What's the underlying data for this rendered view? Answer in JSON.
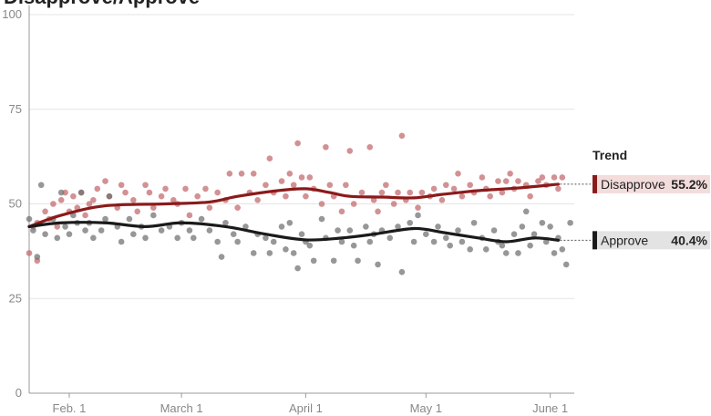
{
  "header": {
    "title_partial": "Disapprove/Approve"
  },
  "chart_data": {
    "type": "scatter",
    "x_type": "date",
    "xlim": [
      "2017-01-22",
      "2017-06-07"
    ],
    "ylim": [
      0,
      100
    ],
    "y_ticks": [
      0,
      25,
      50,
      75,
      100
    ],
    "x_ticks": [
      {
        "date": "2017-02-01",
        "label": "Feb. 1"
      },
      {
        "date": "2017-03-01",
        "label": "March 1"
      },
      {
        "date": "2017-04-01",
        "label": "April 1"
      },
      {
        "date": "2017-05-01",
        "label": "May 1"
      },
      {
        "date": "2017-06-01",
        "label": "June 1"
      }
    ],
    "grid": "horizontal",
    "legend_title": "Trend",
    "legend_position": "right",
    "series": [
      {
        "name": "Disapprove",
        "color": "#8b1a1a",
        "point_color": "#c0676b",
        "value_label": "55.2%",
        "trend": [
          {
            "x": "2017-01-22",
            "y": 44
          },
          {
            "x": "2017-01-30",
            "y": 47
          },
          {
            "x": "2017-02-10",
            "y": 49.5
          },
          {
            "x": "2017-02-25",
            "y": 50
          },
          {
            "x": "2017-03-08",
            "y": 50.5
          },
          {
            "x": "2017-03-15",
            "y": 52
          },
          {
            "x": "2017-03-25",
            "y": 53.5
          },
          {
            "x": "2017-04-01",
            "y": 54
          },
          {
            "x": "2017-04-07",
            "y": 53
          },
          {
            "x": "2017-04-12",
            "y": 52
          },
          {
            "x": "2017-04-20",
            "y": 51.8
          },
          {
            "x": "2017-04-28",
            "y": 51.6
          },
          {
            "x": "2017-05-05",
            "y": 52.5
          },
          {
            "x": "2017-05-14",
            "y": 53.5
          },
          {
            "x": "2017-05-24",
            "y": 54.2
          },
          {
            "x": "2017-06-03",
            "y": 55.2
          }
        ],
        "points": [
          {
            "x": "2017-01-22",
            "y": 37
          },
          {
            "x": "2017-01-23",
            "y": 44
          },
          {
            "x": "2017-01-24",
            "y": 35
          },
          {
            "x": "2017-01-24",
            "y": 45
          },
          {
            "x": "2017-01-26",
            "y": 48
          },
          {
            "x": "2017-01-27",
            "y": 46
          },
          {
            "x": "2017-01-28",
            "y": 50
          },
          {
            "x": "2017-01-29",
            "y": 44
          },
          {
            "x": "2017-01-30",
            "y": 51
          },
          {
            "x": "2017-01-31",
            "y": 53
          },
          {
            "x": "2017-02-01",
            "y": 48
          },
          {
            "x": "2017-02-02",
            "y": 52
          },
          {
            "x": "2017-02-03",
            "y": 49
          },
          {
            "x": "2017-02-04",
            "y": 53
          },
          {
            "x": "2017-02-05",
            "y": 47
          },
          {
            "x": "2017-02-06",
            "y": 50
          },
          {
            "x": "2017-02-07",
            "y": 51
          },
          {
            "x": "2017-02-08",
            "y": 54
          },
          {
            "x": "2017-02-10",
            "y": 56
          },
          {
            "x": "2017-02-11",
            "y": 52
          },
          {
            "x": "2017-02-13",
            "y": 49
          },
          {
            "x": "2017-02-14",
            "y": 55
          },
          {
            "x": "2017-02-15",
            "y": 53
          },
          {
            "x": "2017-02-17",
            "y": 51
          },
          {
            "x": "2017-02-18",
            "y": 48
          },
          {
            "x": "2017-02-20",
            "y": 55
          },
          {
            "x": "2017-02-21",
            "y": 53
          },
          {
            "x": "2017-02-22",
            "y": 49
          },
          {
            "x": "2017-02-24",
            "y": 52
          },
          {
            "x": "2017-02-25",
            "y": 54
          },
          {
            "x": "2017-02-27",
            "y": 51
          },
          {
            "x": "2017-02-28",
            "y": 50
          },
          {
            "x": "2017-03-02",
            "y": 54
          },
          {
            "x": "2017-03-03",
            "y": 47
          },
          {
            "x": "2017-03-05",
            "y": 52
          },
          {
            "x": "2017-03-07",
            "y": 54
          },
          {
            "x": "2017-03-08",
            "y": 49
          },
          {
            "x": "2017-03-10",
            "y": 53
          },
          {
            "x": "2017-03-12",
            "y": 51
          },
          {
            "x": "2017-03-13",
            "y": 58
          },
          {
            "x": "2017-03-15",
            "y": 49
          },
          {
            "x": "2017-03-16",
            "y": 58
          },
          {
            "x": "2017-03-18",
            "y": 53
          },
          {
            "x": "2017-03-19",
            "y": 58
          },
          {
            "x": "2017-03-20",
            "y": 51
          },
          {
            "x": "2017-03-22",
            "y": 55
          },
          {
            "x": "2017-03-23",
            "y": 62
          },
          {
            "x": "2017-03-24",
            "y": 53
          },
          {
            "x": "2017-03-26",
            "y": 56
          },
          {
            "x": "2017-03-27",
            "y": 52
          },
          {
            "x": "2017-03-28",
            "y": 58
          },
          {
            "x": "2017-03-29",
            "y": 55
          },
          {
            "x": "2017-03-30",
            "y": 66
          },
          {
            "x": "2017-03-31",
            "y": 57
          },
          {
            "x": "2017-04-01",
            "y": 52
          },
          {
            "x": "2017-04-02",
            "y": 57
          },
          {
            "x": "2017-04-03",
            "y": 54
          },
          {
            "x": "2017-04-05",
            "y": 50
          },
          {
            "x": "2017-04-06",
            "y": 65
          },
          {
            "x": "2017-04-07",
            "y": 55
          },
          {
            "x": "2017-04-08",
            "y": 52
          },
          {
            "x": "2017-04-10",
            "y": 48
          },
          {
            "x": "2017-04-11",
            "y": 55
          },
          {
            "x": "2017-04-12",
            "y": 64
          },
          {
            "x": "2017-04-13",
            "y": 50
          },
          {
            "x": "2017-04-15",
            "y": 53
          },
          {
            "x": "2017-04-17",
            "y": 65
          },
          {
            "x": "2017-04-18",
            "y": 51
          },
          {
            "x": "2017-04-19",
            "y": 48
          },
          {
            "x": "2017-04-20",
            "y": 53
          },
          {
            "x": "2017-04-21",
            "y": 55
          },
          {
            "x": "2017-04-23",
            "y": 50
          },
          {
            "x": "2017-04-24",
            "y": 53
          },
          {
            "x": "2017-04-25",
            "y": 68
          },
          {
            "x": "2017-04-26",
            "y": 51
          },
          {
            "x": "2017-04-27",
            "y": 53
          },
          {
            "x": "2017-04-29",
            "y": 49
          },
          {
            "x": "2017-04-30",
            "y": 53
          },
          {
            "x": "2017-05-02",
            "y": 52
          },
          {
            "x": "2017-05-03",
            "y": 54
          },
          {
            "x": "2017-05-05",
            "y": 51
          },
          {
            "x": "2017-05-06",
            "y": 55
          },
          {
            "x": "2017-05-08",
            "y": 54
          },
          {
            "x": "2017-05-09",
            "y": 58
          },
          {
            "x": "2017-05-10",
            "y": 52
          },
          {
            "x": "2017-05-12",
            "y": 55
          },
          {
            "x": "2017-05-13",
            "y": 53
          },
          {
            "x": "2017-05-15",
            "y": 57
          },
          {
            "x": "2017-05-16",
            "y": 54
          },
          {
            "x": "2017-05-17",
            "y": 52
          },
          {
            "x": "2017-05-19",
            "y": 56
          },
          {
            "x": "2017-05-20",
            "y": 53
          },
          {
            "x": "2017-05-21",
            "y": 56
          },
          {
            "x": "2017-05-22",
            "y": 58
          },
          {
            "x": "2017-05-23",
            "y": 54
          },
          {
            "x": "2017-05-24",
            "y": 56
          },
          {
            "x": "2017-05-26",
            "y": 55
          },
          {
            "x": "2017-05-27",
            "y": 52
          },
          {
            "x": "2017-05-29",
            "y": 56
          },
          {
            "x": "2017-05-30",
            "y": 57
          },
          {
            "x": "2017-05-31",
            "y": 55
          },
          {
            "x": "2017-06-02",
            "y": 57
          },
          {
            "x": "2017-06-03",
            "y": 54
          },
          {
            "x": "2017-06-04",
            "y": 57
          }
        ]
      },
      {
        "name": "Approve",
        "color": "#1a1a1a",
        "point_color": "#6f6f6f",
        "value_label": "40.4%",
        "trend": [
          {
            "x": "2017-01-22",
            "y": 44
          },
          {
            "x": "2017-01-30",
            "y": 45
          },
          {
            "x": "2017-02-10",
            "y": 45
          },
          {
            "x": "2017-02-20",
            "y": 44
          },
          {
            "x": "2017-03-01",
            "y": 45
          },
          {
            "x": "2017-03-12",
            "y": 44
          },
          {
            "x": "2017-03-22",
            "y": 42
          },
          {
            "x": "2017-04-01",
            "y": 40.5
          },
          {
            "x": "2017-04-10",
            "y": 41
          },
          {
            "x": "2017-04-18",
            "y": 42
          },
          {
            "x": "2017-04-28",
            "y": 43.5
          },
          {
            "x": "2017-05-05",
            "y": 42.5
          },
          {
            "x": "2017-05-14",
            "y": 41
          },
          {
            "x": "2017-05-21",
            "y": 40
          },
          {
            "x": "2017-05-28",
            "y": 41
          },
          {
            "x": "2017-06-03",
            "y": 40.4
          }
        ],
        "points": [
          {
            "x": "2017-01-22",
            "y": 46
          },
          {
            "x": "2017-01-23",
            "y": 43
          },
          {
            "x": "2017-01-24",
            "y": 36
          },
          {
            "x": "2017-01-25",
            "y": 55
          },
          {
            "x": "2017-01-26",
            "y": 42
          },
          {
            "x": "2017-01-28",
            "y": 46
          },
          {
            "x": "2017-01-29",
            "y": 41
          },
          {
            "x": "2017-01-30",
            "y": 53
          },
          {
            "x": "2017-01-31",
            "y": 44
          },
          {
            "x": "2017-02-01",
            "y": 42
          },
          {
            "x": "2017-02-02",
            "y": 47
          },
          {
            "x": "2017-02-03",
            "y": 45
          },
          {
            "x": "2017-02-04",
            "y": 53
          },
          {
            "x": "2017-02-05",
            "y": 43
          },
          {
            "x": "2017-02-06",
            "y": 45
          },
          {
            "x": "2017-02-07",
            "y": 41
          },
          {
            "x": "2017-02-09",
            "y": 43
          },
          {
            "x": "2017-02-10",
            "y": 46
          },
          {
            "x": "2017-02-11",
            "y": 52
          },
          {
            "x": "2017-02-13",
            "y": 44
          },
          {
            "x": "2017-02-14",
            "y": 40
          },
          {
            "x": "2017-02-16",
            "y": 46
          },
          {
            "x": "2017-02-17",
            "y": 42
          },
          {
            "x": "2017-02-19",
            "y": 44
          },
          {
            "x": "2017-02-20",
            "y": 41
          },
          {
            "x": "2017-02-22",
            "y": 47
          },
          {
            "x": "2017-02-24",
            "y": 43
          },
          {
            "x": "2017-02-26",
            "y": 44
          },
          {
            "x": "2017-02-28",
            "y": 41
          },
          {
            "x": "2017-03-01",
            "y": 45
          },
          {
            "x": "2017-03-03",
            "y": 43
          },
          {
            "x": "2017-03-04",
            "y": 41
          },
          {
            "x": "2017-03-06",
            "y": 46
          },
          {
            "x": "2017-03-08",
            "y": 43
          },
          {
            "x": "2017-03-10",
            "y": 40
          },
          {
            "x": "2017-03-11",
            "y": 36
          },
          {
            "x": "2017-03-12",
            "y": 45
          },
          {
            "x": "2017-03-14",
            "y": 42
          },
          {
            "x": "2017-03-15",
            "y": 40
          },
          {
            "x": "2017-03-17",
            "y": 44
          },
          {
            "x": "2017-03-19",
            "y": 37
          },
          {
            "x": "2017-03-20",
            "y": 42
          },
          {
            "x": "2017-03-22",
            "y": 41
          },
          {
            "x": "2017-03-23",
            "y": 37
          },
          {
            "x": "2017-03-24",
            "y": 40
          },
          {
            "x": "2017-03-26",
            "y": 44
          },
          {
            "x": "2017-03-27",
            "y": 38
          },
          {
            "x": "2017-03-28",
            "y": 45
          },
          {
            "x": "2017-03-29",
            "y": 37
          },
          {
            "x": "2017-03-30",
            "y": 33
          },
          {
            "x": "2017-03-31",
            "y": 42
          },
          {
            "x": "2017-04-01",
            "y": 40
          },
          {
            "x": "2017-04-02",
            "y": 39
          },
          {
            "x": "2017-04-03",
            "y": 35
          },
          {
            "x": "2017-04-05",
            "y": 46
          },
          {
            "x": "2017-04-06",
            "y": 41
          },
          {
            "x": "2017-04-08",
            "y": 35
          },
          {
            "x": "2017-04-09",
            "y": 43
          },
          {
            "x": "2017-04-10",
            "y": 40
          },
          {
            "x": "2017-04-12",
            "y": 43
          },
          {
            "x": "2017-04-13",
            "y": 39
          },
          {
            "x": "2017-04-14",
            "y": 35
          },
          {
            "x": "2017-04-16",
            "y": 44
          },
          {
            "x": "2017-04-17",
            "y": 40
          },
          {
            "x": "2017-04-18",
            "y": 42
          },
          {
            "x": "2017-04-19",
            "y": 34
          },
          {
            "x": "2017-04-20",
            "y": 43
          },
          {
            "x": "2017-04-22",
            "y": 41
          },
          {
            "x": "2017-04-24",
            "y": 44
          },
          {
            "x": "2017-04-25",
            "y": 32
          },
          {
            "x": "2017-04-27",
            "y": 45
          },
          {
            "x": "2017-04-28",
            "y": 40
          },
          {
            "x": "2017-04-29",
            "y": 47
          },
          {
            "x": "2017-05-01",
            "y": 42
          },
          {
            "x": "2017-05-03",
            "y": 40
          },
          {
            "x": "2017-05-04",
            "y": 44
          },
          {
            "x": "2017-05-06",
            "y": 41
          },
          {
            "x": "2017-05-07",
            "y": 39
          },
          {
            "x": "2017-05-09",
            "y": 43
          },
          {
            "x": "2017-05-10",
            "y": 40
          },
          {
            "x": "2017-05-12",
            "y": 38
          },
          {
            "x": "2017-05-13",
            "y": 45
          },
          {
            "x": "2017-05-15",
            "y": 41
          },
          {
            "x": "2017-05-16",
            "y": 38
          },
          {
            "x": "2017-05-18",
            "y": 43
          },
          {
            "x": "2017-05-19",
            "y": 40
          },
          {
            "x": "2017-05-20",
            "y": 39
          },
          {
            "x": "2017-05-21",
            "y": 37
          },
          {
            "x": "2017-05-23",
            "y": 42
          },
          {
            "x": "2017-05-24",
            "y": 37
          },
          {
            "x": "2017-05-25",
            "y": 44
          },
          {
            "x": "2017-05-26",
            "y": 48
          },
          {
            "x": "2017-05-27",
            "y": 39
          },
          {
            "x": "2017-05-28",
            "y": 42
          },
          {
            "x": "2017-05-30",
            "y": 45
          },
          {
            "x": "2017-05-31",
            "y": 40
          },
          {
            "x": "2017-06-01",
            "y": 44
          },
          {
            "x": "2017-06-02",
            "y": 37
          },
          {
            "x": "2017-06-03",
            "y": 41
          },
          {
            "x": "2017-06-04",
            "y": 38
          },
          {
            "x": "2017-06-05",
            "y": 34
          },
          {
            "x": "2017-06-06",
            "y": 45
          }
        ]
      }
    ]
  }
}
